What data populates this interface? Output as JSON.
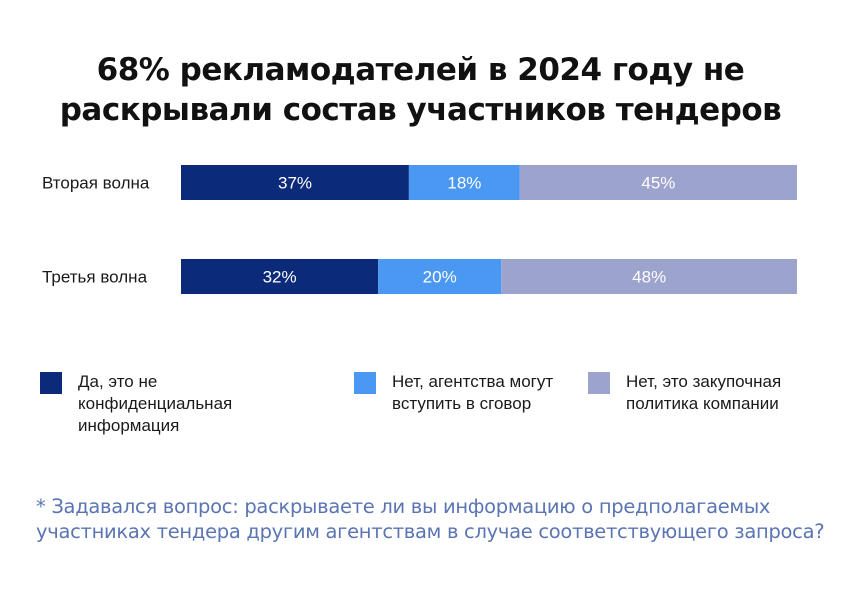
{
  "title_lines": [
    "68% рекламодателей в 2024 году не",
    "раскрывали состав участников тендеров"
  ],
  "chart_data": {
    "type": "bar",
    "orientation": "horizontal",
    "stacked": true,
    "percent": true,
    "categories": [
      "Вторая волна",
      "Третья волна"
    ],
    "series": [
      {
        "name": "Да, это не конфиденциальная информация",
        "values": [
          37,
          32
        ],
        "labels": [
          "37%",
          "32%"
        ],
        "color": "#0b2a7a"
      },
      {
        "name": "Нет, агентства могут вступить в сговор",
        "values": [
          18,
          20
        ],
        "labels": [
          "18%",
          "20%"
        ],
        "color": "#4a98f2"
      },
      {
        "name": "Нет, это закупочная политика компании",
        "values": [
          45,
          48
        ],
        "labels": [
          "45%",
          "48%"
        ],
        "color": "#9ca3cc"
      }
    ],
    "xlim": [
      0,
      100
    ],
    "grid": false,
    "legend_position": "bottom"
  },
  "legend": [
    {
      "lines": [
        "Да, это не конфиденциальная",
        "информация"
      ],
      "color": "#0b2a7a"
    },
    {
      "lines": [
        "Нет, агентства могут",
        "вступить в сговор"
      ],
      "color": "#4a98f2"
    },
    {
      "lines": [
        "Нет, это закупочная",
        "политика компании"
      ],
      "color": "#9ca3cc"
    }
  ],
  "footnote_lines": [
    "* Задавался вопрос: раскрываете ли вы информацию о предполагаемых",
    "участниках тендера другим агентствам в случае соответствующего запроса?"
  ]
}
